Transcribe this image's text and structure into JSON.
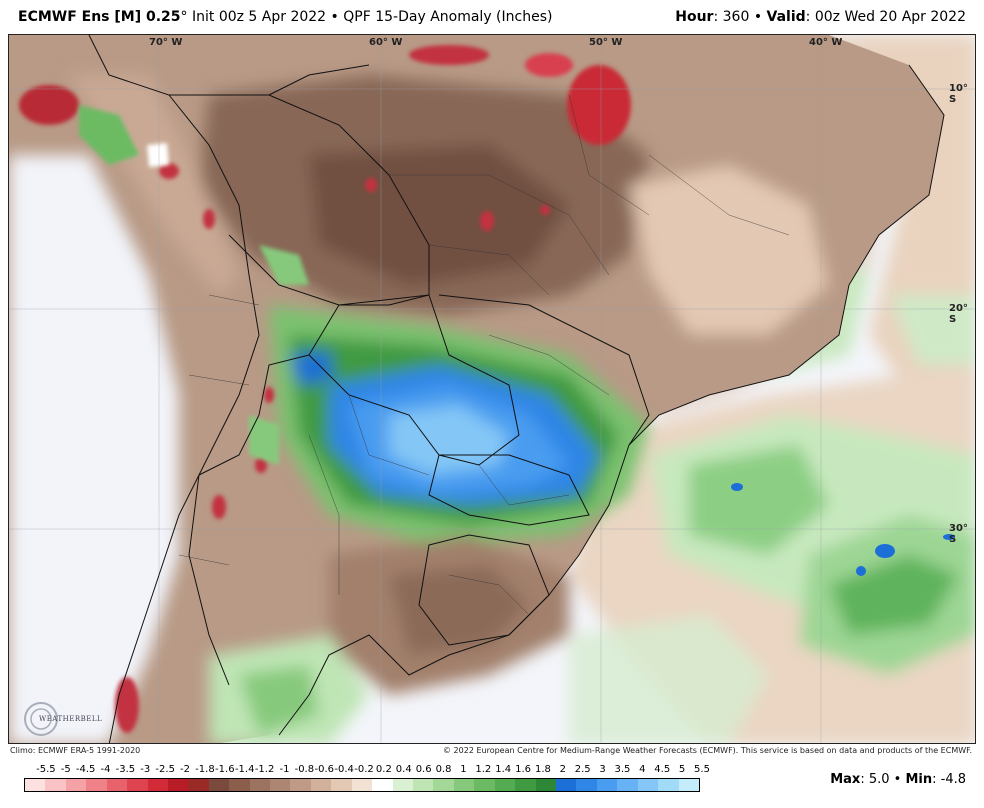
{
  "header": {
    "model": "ECMWF Ens [M] 0.25",
    "degree": "°",
    "init": "Init 00z 5 Apr 2022",
    "bullet": "•",
    "product": "QPF 15-Day Anomaly (Inches)",
    "hour_label": "Hour",
    "hour_value": ": 360",
    "valid_label": "Valid",
    "valid_value": ": 00z Wed 20 Apr 2022"
  },
  "map": {
    "lon_labels": [
      "70° W",
      "60° W",
      "50° W",
      "40° W"
    ],
    "lat_labels": [
      "10° S",
      "20° S",
      "30° S"
    ],
    "logo_text": "WEATHERBELL"
  },
  "footer": {
    "climo": "Climo: ECMWF ERA-5 1991-2020",
    "copyright": "© 2022 European Centre for Medium-Range Weather Forecasts (ECMWF). This service is based on data and products of the ECMWF."
  },
  "colorbar": {
    "labels": [
      "-5.5",
      "-5",
      "-4.5",
      "-4",
      "-3.5",
      "-3",
      "-2.5",
      "-2",
      "-1.8",
      "-1.6",
      "-1.4",
      "-1.2",
      "-1",
      "-0.8",
      "-0.6",
      "-0.4",
      "-0.2",
      "0.2",
      "0.4",
      "0.6",
      "0.8",
      "1",
      "1.2",
      "1.4",
      "1.6",
      "1.8",
      "2",
      "2.5",
      "3",
      "3.5",
      "4",
      "4.5",
      "5",
      "5.5"
    ],
    "colors": [
      "#fde0e0",
      "#f9c2c4",
      "#f4a2a6",
      "#ee8288",
      "#e8626b",
      "#df434f",
      "#d22a36",
      "#b81c27",
      "#9a2a26",
      "#7a4a3e",
      "#8b5e4c",
      "#9c7260",
      "#ad8673",
      "#bf9b87",
      "#d1b19c",
      "#e3c8b3",
      "#f2e2d3",
      "#ffffff",
      "#d9f0d3",
      "#bfe5b5",
      "#a3d898",
      "#86c97c",
      "#6cbb64",
      "#54ab51",
      "#3f9a42",
      "#2d8736",
      "#1c6fd6",
      "#2f86e6",
      "#4a9cf0",
      "#67b2f4",
      "#84c7f6",
      "#a2dbf8",
      "#c4ecfa"
    ]
  },
  "stats": {
    "max_label": "Max",
    "max_value": ": 5.0",
    "sep": "•",
    "min_label": "Min",
    "min_value": ": -4.8"
  }
}
